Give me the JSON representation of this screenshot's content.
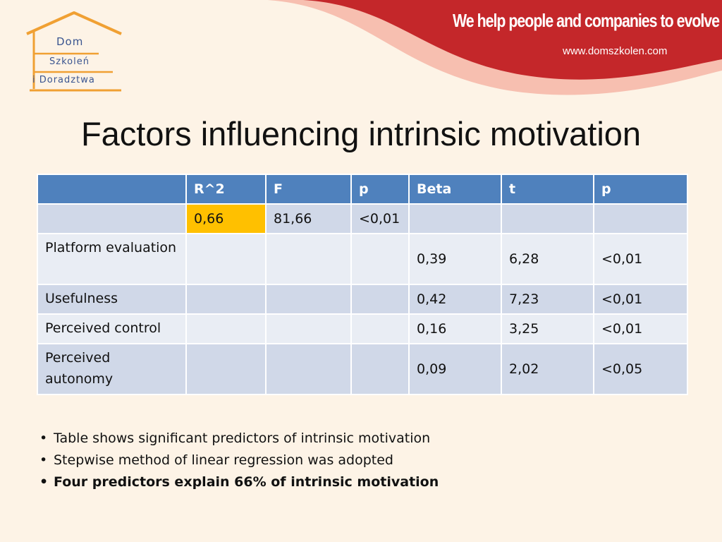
{
  "header": {
    "tagline": "We help people and companies to evolve",
    "website": "www.domszkolen.com",
    "logo_lines": [
      "Dom",
      "Szkoleń",
      "i Doradztwa"
    ],
    "colors": {
      "banner_red": "#c4272a",
      "banner_light": "#ef8a7a",
      "logo_roof": "#f0a033",
      "logo_text": "#3a5590"
    }
  },
  "title": "Factors influencing intrinsic motivation",
  "table": {
    "headers": [
      "",
      "R^2",
      "F",
      "p",
      "Beta",
      "t",
      "p"
    ],
    "rows": [
      [
        "",
        "0,66",
        "81,66",
        "<0,01",
        "",
        "",
        ""
      ],
      [
        "Platform evaluation",
        "",
        "",
        "",
        "0,39",
        "6,28",
        "<0,01"
      ],
      [
        "Usefulness",
        "",
        "",
        "",
        "0,42",
        "7,23",
        "<0,01"
      ],
      [
        "Perceived control",
        "",
        "",
        "",
        "0,16",
        "3,25",
        "<0,01"
      ],
      [
        "Perceived autonomy",
        "",
        "",
        "",
        "0,09",
        "2,02",
        "<0,05"
      ]
    ],
    "colors": {
      "header": "#4f81bd",
      "row_dark": "#d0d8e8",
      "row_light": "#e9edf4",
      "highlight": "#ffc000"
    }
  },
  "bullets": [
    {
      "text": "Table shows significant predictors of intrinsic motivation",
      "bold": false
    },
    {
      "text": "Stepwise method of linear regression was adopted",
      "bold": false
    },
    {
      "text": "Four predictors explain 66% of intrinsic motivation",
      "bold": true
    }
  ]
}
